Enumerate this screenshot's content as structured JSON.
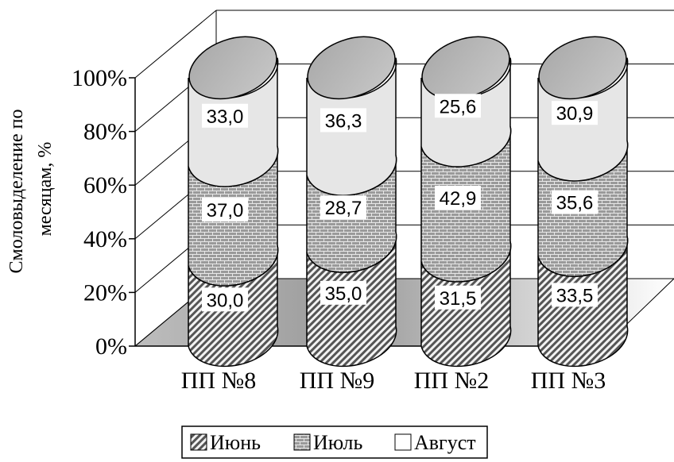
{
  "chart_data": {
    "type": "bar",
    "stacked": "percent",
    "categories": [
      "ПП №8",
      "ПП №9",
      "ПП №2",
      "ПП №3"
    ],
    "series": [
      {
        "name": "Июнь",
        "values": [
          30.0,
          35.0,
          31.5,
          33.5
        ],
        "labels": [
          "30,0",
          "35,0",
          "31,5",
          "33,5"
        ],
        "pattern": "diagonal",
        "color": "#4a4a4a"
      },
      {
        "name": "Июль",
        "values": [
          37.0,
          28.7,
          42.9,
          35.6
        ],
        "labels": [
          "37,0",
          "28,7",
          "42,9",
          "35,6"
        ],
        "pattern": "brick",
        "color": "#8a8a8a"
      },
      {
        "name": "Август",
        "values": [
          33.0,
          36.3,
          25.6,
          30.9
        ],
        "labels": [
          "33,0",
          "36,3",
          "25,6",
          "30,9"
        ],
        "pattern": "none",
        "color": "#e3e3e3"
      }
    ],
    "ylabel_lines": [
      "Смоловыделение по",
      "месяцам, %"
    ],
    "yticks": [
      "0%",
      "20%",
      "40%",
      "60%",
      "80%",
      "100%"
    ],
    "ylim": [
      0,
      100
    ],
    "grid": true,
    "legend_position": "bottom"
  }
}
